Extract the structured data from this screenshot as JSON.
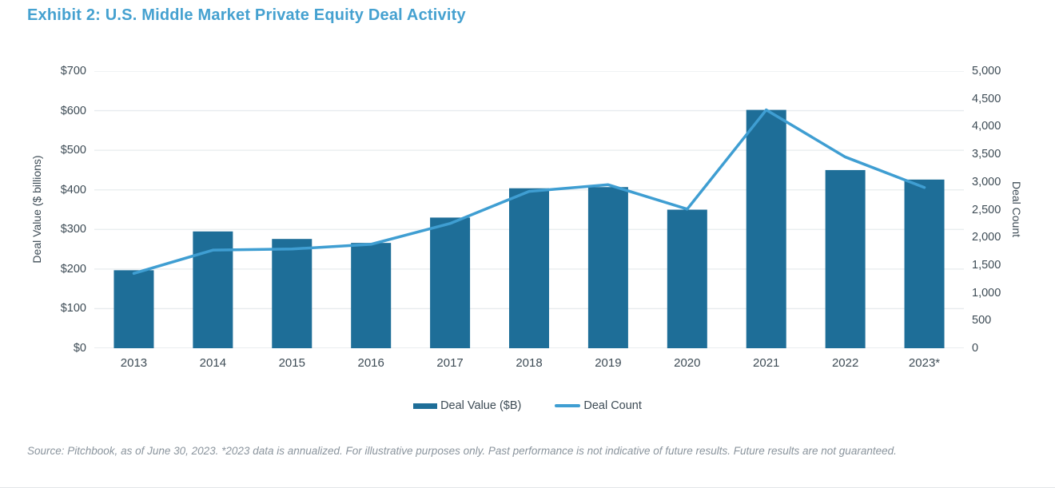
{
  "title": "Exhibit 2: U.S. Middle Market Private Equity Deal Activity",
  "chart_data": {
    "type": "bar",
    "subtype": "bar-line-combo",
    "title": "Exhibit 2: U.S. Middle Market Private Equity Deal Activity",
    "categories": [
      "2013",
      "2014",
      "2015",
      "2016",
      "2017",
      "2018",
      "2019",
      "2020",
      "2021",
      "2022",
      "2023*"
    ],
    "series": [
      {
        "name": "Deal Value ($B)",
        "type": "bar",
        "axis": "left",
        "values": [
          197,
          295,
          276,
          266,
          330,
          404,
          407,
          350,
          602,
          450,
          426
        ]
      },
      {
        "name": "Deal Count",
        "type": "line",
        "axis": "right",
        "values": [
          1350,
          1770,
          1790,
          1875,
          2250,
          2830,
          2950,
          2510,
          4300,
          3450,
          2900
        ]
      }
    ],
    "y_left": {
      "label": "Deal Value ($ billions)",
      "range": [
        0,
        700
      ],
      "tick_step": 100,
      "ticks": [
        "$700",
        "$600",
        "$500",
        "$400",
        "$300",
        "$200",
        "$100",
        "$0"
      ]
    },
    "y_right": {
      "label": "Deal Count",
      "range": [
        0,
        5000
      ],
      "tick_step": 500,
      "ticks": [
        "5,000",
        "4,500",
        "4,000",
        "3,500",
        "3,000",
        "2,500",
        "2,000",
        "1,500",
        "1,000",
        "500",
        "0"
      ]
    },
    "grid": true,
    "legend_position": "bottom"
  },
  "legend": {
    "value_label": "Deal Value ($B)",
    "count_label": "Deal Count"
  },
  "source_note": "Source: Pitchbook, as of June 30, 2023. *2023 data is annualized. For illustrative purposes only. Past performance is not indicative of future results. Future results are not guaranteed.",
  "colors": {
    "bar": "#1e6e98",
    "line": "#3f9ed2",
    "title": "#45a1d0",
    "axis_text": "#3d4b55",
    "grid": "#e7ebee",
    "baseline": "#dde2e5",
    "source_text": "#8a949d"
  }
}
